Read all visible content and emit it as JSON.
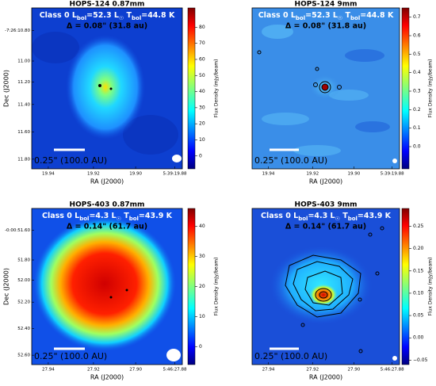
{
  "chart_data": [
    {
      "type": "image",
      "title": "HOPS-124 0.87mm",
      "annotation_line1": [
        "Class 0  L",
        "bol",
        "=52.3 L",
        "☉",
        "  T",
        "bol",
        "=44.8 K"
      ],
      "annotation_line2": "Δ = 0.08\" (31.8 au)",
      "scale_label": "0.25\" (100.0 AU)",
      "xlabel": "RA (J2000)",
      "ylabel": "Dec (J2000)",
      "xtick_labels": [
        "19.94",
        "19.92",
        "19.90",
        "5:39:19.88"
      ],
      "ytick_labels": [
        "-7:26:10.80",
        "11.00",
        "11.20",
        "11.40",
        "11.60",
        "11.80"
      ],
      "colorbar_label": "Flux Density (mJy/beam)",
      "clim": [
        -8,
        92
      ],
      "cticks": [
        0,
        10,
        20,
        30,
        40,
        50,
        60,
        70,
        80
      ]
    },
    {
      "type": "image",
      "title": "HOPS-124 9mm",
      "annotation_line1": [
        "Class 0  L",
        "bol",
        "=52.3 L",
        "☉",
        "  T",
        "bol",
        "=44.8 K"
      ],
      "annotation_line2": "Δ = 0.08\" (31.8 au)",
      "scale_label": "0.25\" (100.0 AU)",
      "xlabel": "RA (J2000)",
      "xtick_labels": [
        "19.94",
        "19.92",
        "19.90",
        "5:39:19.88"
      ],
      "colorbar_label": "Flux Density (mJy/beam)",
      "clim": [
        -0.12,
        0.75
      ],
      "cticks": [
        {
          "value": 0,
          "label": "0.0"
        },
        {
          "value": 0.1,
          "label": "0.1"
        },
        {
          "value": 0.2,
          "label": "0.2"
        },
        {
          "value": 0.3,
          "label": "0.3"
        },
        {
          "value": 0.4,
          "label": "0.4"
        },
        {
          "value": 0.5,
          "label": "0.5"
        },
        {
          "value": 0.6,
          "label": "0.6"
        },
        {
          "value": 0.7,
          "label": "0.7"
        }
      ]
    },
    {
      "type": "image",
      "title": "HOPS-403 0.87mm",
      "annotation_line1": [
        "Class 0  L",
        "bol",
        "=4.3 L",
        "☉",
        "  T",
        "bol",
        "=43.9 K"
      ],
      "annotation_line2": "Δ = 0.14\" (61.7 au)",
      "scale_label": "0.25\" (100.0 AU)",
      "xlabel": "RA (J2000)",
      "ylabel": "Dec (J2000)",
      "xtick_labels": [
        "27.94",
        "27.92",
        "27.90",
        "5:46:27.88"
      ],
      "ytick_labels": [
        "-0:00:51.60",
        "51.80",
        "52.00",
        "52.20",
        "52.40",
        "52.60"
      ],
      "colorbar_label": "Flux Density (mJy/beam)",
      "clim": [
        -6,
        46
      ],
      "cticks": [
        0,
        10,
        20,
        30,
        40
      ]
    },
    {
      "type": "image",
      "title": "HOPS-403 9mm",
      "annotation_line1": [
        "Class 0  L",
        "bol",
        "=4.3 L",
        "☉",
        "  T",
        "bol",
        "=43.9 K"
      ],
      "annotation_line2": "Δ = 0.14\" (61.7 au)",
      "scale_label": "0.25\" (100.0 AU)",
      "xlabel": "RA (J2000)",
      "xtick_labels": [
        "27.94",
        "27.92",
        "27.90",
        "5:46:27.88"
      ],
      "colorbar_label": "Flux Density (mJy/beam)",
      "clim": [
        -0.06,
        0.29
      ],
      "cticks": [
        {
          "value": -0.05,
          "label": "−0.05"
        },
        {
          "value": 0,
          "label": "0.00"
        },
        {
          "value": 0.05,
          "label": "0.05"
        },
        {
          "value": 0.1,
          "label": "0.10"
        },
        {
          "value": 0.15,
          "label": "0.15"
        },
        {
          "value": 0.2,
          "label": "0.20"
        },
        {
          "value": 0.25,
          "label": "0.25"
        }
      ]
    }
  ]
}
